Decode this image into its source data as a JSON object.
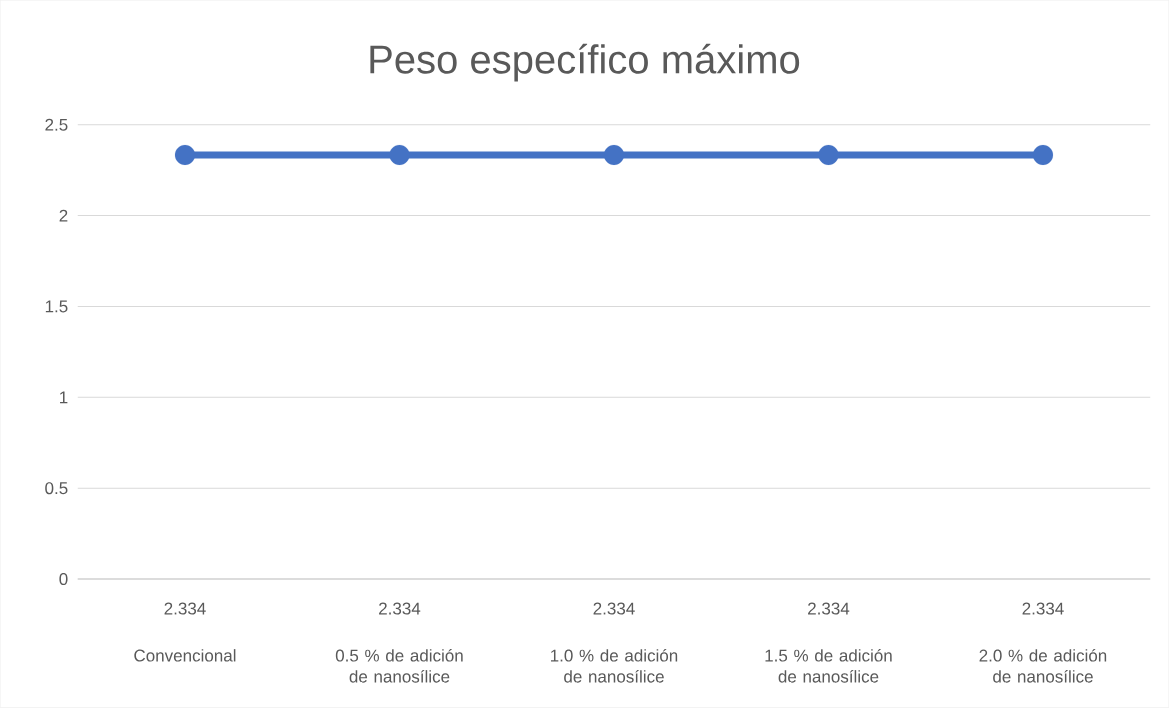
{
  "chart_data": {
    "type": "line",
    "title": "Peso específico máximo",
    "categories": [
      "Convencional",
      "0.5 % de adición de nanosílice",
      "1.0 % de adición de nanosílice",
      "1.5 % de adición de nanosílice",
      "2.0 % de adición de nanosílice"
    ],
    "values": [
      2.334,
      2.334,
      2.334,
      2.334,
      2.334
    ],
    "color": "#4472c4",
    "marker": "circle",
    "line_style": "solid",
    "ylim": [
      0,
      2.5
    ],
    "yticks": [
      0,
      0.5,
      1,
      1.5,
      2,
      2.5
    ],
    "grid": "y",
    "data_labels": true
  }
}
